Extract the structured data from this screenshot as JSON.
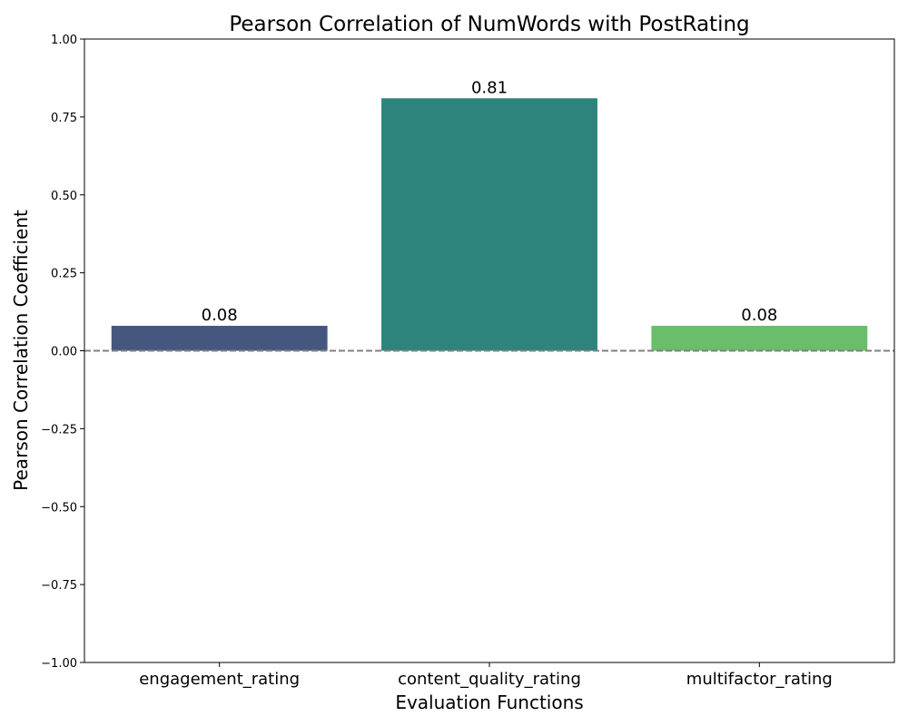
{
  "chart_data": {
    "type": "bar",
    "title": "Pearson Correlation of NumWords with PostRating",
    "xlabel": "Evaluation Functions",
    "ylabel": "Pearson Correlation Coefficient",
    "categories": [
      "engagement_rating",
      "content_quality_rating",
      "multifactor_rating"
    ],
    "values": [
      0.08,
      0.81,
      0.08
    ],
    "data_labels": [
      "0.08",
      "0.81",
      "0.08"
    ],
    "colors": [
      "#46577f",
      "#2e837d",
      "#6abd6b"
    ],
    "ylim": [
      -1.0,
      1.0
    ],
    "yticks": [
      1.0,
      0.75,
      0.5,
      0.25,
      0.0,
      -0.25,
      -0.5,
      -0.75,
      -1.0
    ],
    "ytick_labels": [
      "1.00",
      "0.75",
      "0.50",
      "0.25",
      "0.00",
      "−0.25",
      "−0.50",
      "−0.75",
      "−1.00"
    ],
    "reference_line": {
      "y": 0,
      "style": "dashed",
      "color": "#808080"
    },
    "grid": false,
    "legend": "none"
  }
}
